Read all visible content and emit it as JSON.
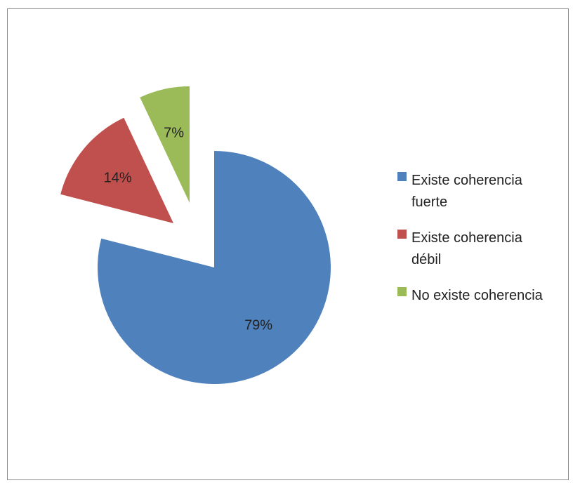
{
  "chart_data": {
    "type": "pie",
    "exploded": true,
    "legend_position": "right",
    "series": [
      {
        "values": [
          79,
          14,
          7
        ],
        "unit": "%"
      }
    ],
    "categories": [
      "Existe coherencia fuerte",
      "Existe coherencia débil",
      "No existe coherencia"
    ],
    "slices": [
      {
        "label": "Existe coherencia fuerte",
        "legend_lines": [
          "Existe coherencia",
          "fuerte"
        ],
        "value": 79,
        "value_label": "79%",
        "color": "#4f81bd"
      },
      {
        "label": "Existe coherencia débil",
        "legend_lines": [
          "Existe coherencia",
          "débil"
        ],
        "value": 14,
        "value_label": "14%",
        "color": "#c0504d"
      },
      {
        "label": "No existe coherencia",
        "legend_lines": [
          "No existe coherencia"
        ],
        "value": 7,
        "value_label": "7%",
        "color": "#9bbb59"
      }
    ]
  }
}
